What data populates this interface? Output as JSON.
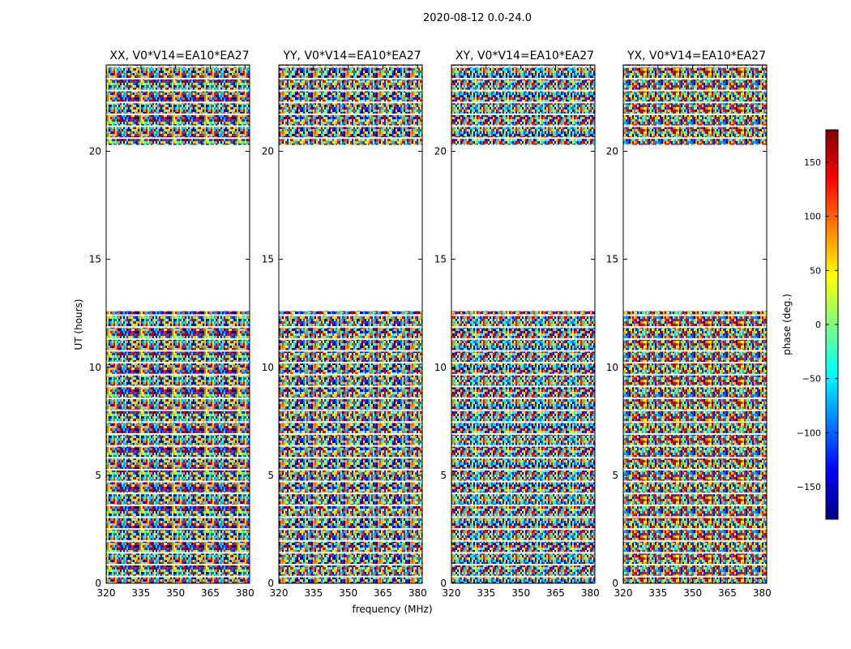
{
  "chart_data": {
    "type": "heatmap",
    "suptitle": "2020-08-12 0.0-24.0",
    "xlabel": "frequency (MHz)",
    "ylabel": "UT (hours)",
    "xlim": [
      320,
      382
    ],
    "ylim": [
      0,
      24
    ],
    "xticks": [
      320,
      335,
      350,
      365,
      380
    ],
    "yticks": [
      0,
      5,
      10,
      15,
      20
    ],
    "panels": [
      {
        "title": "XX, V0*V14=EA10*EA27"
      },
      {
        "title": "YY, V0*V14=EA10*EA27"
      },
      {
        "title": "XY, V0*V14=EA10*EA27"
      },
      {
        "title": "YX, V0*V14=EA10*EA27"
      }
    ],
    "data_segments_hours": [
      [
        0,
        12.6
      ],
      [
        20.3,
        24
      ]
    ],
    "empty_range_hours": [
      12.6,
      20.3
    ],
    "colorbar": {
      "label": "phase (deg.)",
      "range": [
        -180,
        180
      ],
      "ticks": [
        -150,
        -100,
        -50,
        0,
        50,
        100,
        150
      ],
      "tick_labels": [
        "−150",
        "−100",
        "−50",
        "0",
        "50",
        "100",
        "150"
      ],
      "colormap": "jet",
      "colors": [
        "#00007f",
        "#0000ff",
        "#007fff",
        "#00ffff",
        "#7fff7f",
        "#ffff00",
        "#ff7f00",
        "#ff0000",
        "#7f0000"
      ]
    }
  }
}
